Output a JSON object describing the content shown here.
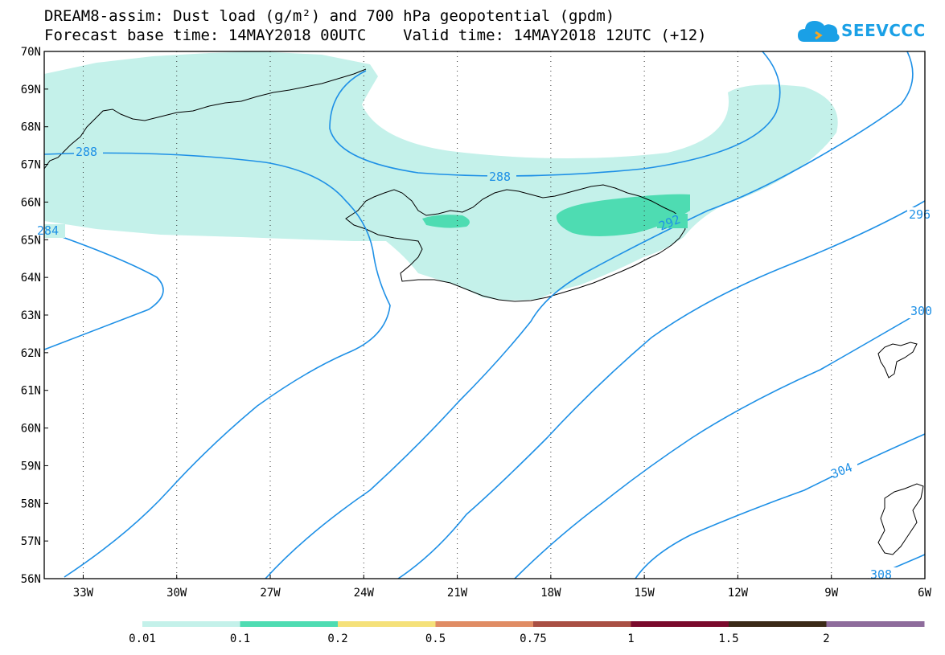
{
  "title": {
    "line1": "DREAM8-assim: Dust load (g/m²) and 700 hPa geopotential (gpdm)",
    "line2": "Forecast base time: 14MAY2018 00UTC    Valid time: 14MAY2018 12UTC (+12)"
  },
  "logo": {
    "text": "SEEVCCC",
    "icon": "cloud-logo-icon",
    "color": "#1aa0e6"
  },
  "map": {
    "lat_labels": [
      "70N",
      "69N",
      "68N",
      "67N",
      "66N",
      "65N",
      "64N",
      "63N",
      "62N",
      "61N",
      "60N",
      "59N",
      "58N",
      "57N",
      "56N"
    ],
    "lon_labels": [
      "33W",
      "30W",
      "27W",
      "24W",
      "21W",
      "18W",
      "15W",
      "12W",
      "9W",
      "6W"
    ],
    "contour_labels": [
      "288",
      "288",
      "284",
      "292",
      "296",
      "300",
      "304",
      "308"
    ],
    "contour_color": "#1e90e6",
    "grid": true
  },
  "colorbar": {
    "labels": [
      "0.01",
      "0.1",
      "0.2",
      "0.5",
      "0.75",
      "1",
      "1.5",
      "2"
    ],
    "colors": [
      "#c4f1ea",
      "#4edcb2",
      "#f5e17a",
      "#e08c64",
      "#a94f44",
      "#7a0a2c",
      "#3b2a18",
      "#8e6c9c"
    ]
  }
}
